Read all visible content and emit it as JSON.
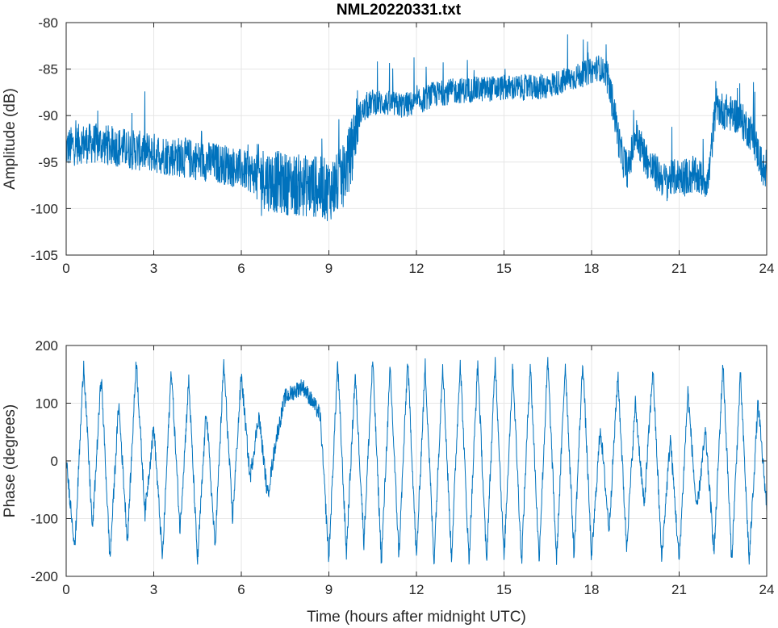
{
  "chart_data": {
    "title": "NML20220331.txt",
    "line_color": "#0072BD",
    "grid": true,
    "panels": [
      {
        "type": "line",
        "name": "amplitude",
        "ylabel": "Amplitude (dB)",
        "xlabel": "",
        "xlim": [
          0,
          24
        ],
        "ylim": [
          -105,
          -80
        ],
        "xticks": [
          0,
          3,
          6,
          9,
          12,
          15,
          18,
          21,
          24
        ],
        "yticks": [
          -105,
          -100,
          -95,
          -90,
          -85,
          -80
        ],
        "series": [
          {
            "x": [
              0,
              0.5,
              1,
              1.5,
              2,
              2.5,
              3,
              3.5,
              4,
              4.5,
              5,
              5.5,
              6,
              6.5,
              7,
              7.5,
              8,
              8.5,
              9,
              9.25,
              9.5,
              9.75,
              10,
              10.5,
              11,
              11.5,
              12,
              12.5,
              13,
              13.5,
              14,
              14.5,
              15,
              15.5,
              16,
              16.5,
              17,
              17.5,
              18,
              18.25,
              18.5,
              18.75,
              19,
              19.25,
              19.5,
              20,
              20.5,
              21,
              21.5,
              22,
              22.25,
              22.5,
              23,
              23.5,
              24
            ],
            "y": [
              -93.5,
              -93,
              -93,
              -93.2,
              -93.5,
              -93.8,
              -94,
              -94.3,
              -94.5,
              -94.8,
              -95,
              -95.3,
              -95.8,
              -96.3,
              -97,
              -97.3,
              -97.5,
              -97.6,
              -98,
              -97.5,
              -96.5,
              -94,
              -90,
              -88.5,
              -88.7,
              -88.9,
              -88.7,
              -87.8,
              -87.5,
              -87.3,
              -87.2,
              -87.1,
              -87,
              -87,
              -87,
              -86.8,
              -86.3,
              -85.8,
              -85.2,
              -84.8,
              -85.5,
              -89,
              -94,
              -96,
              -92,
              -95.5,
              -97,
              -96.5,
              -96.5,
              -97,
              -89,
              -89.5,
              -90,
              -92,
              -97
            ]
          }
        ]
      },
      {
        "type": "line",
        "name": "phase",
        "ylabel": "Phase (degrees)",
        "xlabel": "Time (hours after midnight UTC)",
        "xlim": [
          0,
          24
        ],
        "ylim": [
          -200,
          200
        ],
        "xticks": [
          0,
          3,
          6,
          9,
          12,
          15,
          18,
          21,
          24
        ],
        "yticks": [
          -200,
          -100,
          0,
          100,
          200
        ],
        "series": [
          {
            "x": [
              0,
              0.3,
              0.6,
              0.9,
              1.2,
              1.5,
              1.8,
              2.1,
              2.4,
              2.7,
              3,
              3.3,
              3.6,
              3.9,
              4.2,
              4.5,
              4.8,
              5.1,
              5.4,
              5.7,
              6,
              6.3,
              6.6,
              6.9,
              7.2,
              7.5,
              7.8,
              8.1,
              8.4,
              8.7,
              9,
              9.3,
              9.6,
              9.9,
              10.2,
              10.5,
              10.8,
              11.1,
              11.4,
              11.7,
              12,
              12.3,
              12.6,
              12.9,
              13.2,
              13.5,
              13.8,
              14.1,
              14.4,
              14.7,
              15,
              15.3,
              15.6,
              15.9,
              16.2,
              16.5,
              16.8,
              17.1,
              17.4,
              17.7,
              18,
              18.3,
              18.6,
              18.9,
              19.2,
              19.5,
              19.8,
              20.1,
              20.4,
              20.7,
              21,
              21.3,
              21.6,
              21.9,
              22.2,
              22.5,
              22.8,
              23.1,
              23.4,
              23.7,
              24
            ],
            "y": [
              0,
              -150,
              170,
              -120,
              150,
              -170,
              100,
              -140,
              175,
              -90,
              60,
              -170,
              160,
              -120,
              140,
              -175,
              90,
              -150,
              170,
              -100,
              150,
              -30,
              80,
              -60,
              40,
              110,
              120,
              130,
              105,
              80,
              -170,
              170,
              -160,
              150,
              -140,
              175,
              -175,
              160,
              -165,
              175,
              -170,
              165,
              -175,
              170,
              -170,
              175,
              -175,
              170,
              -175,
              175,
              -170,
              165,
              -175,
              170,
              -170,
              175,
              -175,
              170,
              -165,
              175,
              -170,
              60,
              -120,
              150,
              -150,
              100,
              -80,
              160,
              -170,
              40,
              -175,
              120,
              -90,
              50,
              -160,
              170,
              -175,
              150,
              -175,
              100,
              -80
            ]
          }
        ]
      }
    ]
  }
}
